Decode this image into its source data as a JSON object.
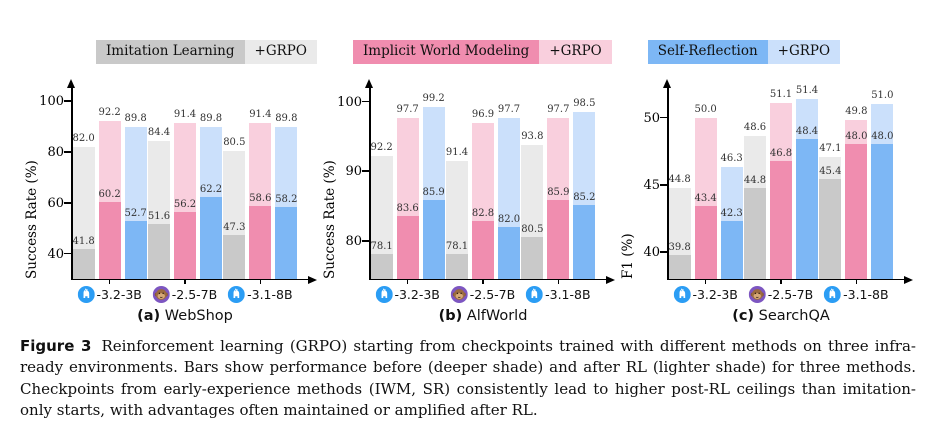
{
  "legend": {
    "items": [
      {
        "label": "Imitation Learning",
        "grpo": "+GRPO",
        "dark": "#c9c9c9",
        "light": "#eaeaea"
      },
      {
        "label": "Implicit World Modeling",
        "grpo": "+GRPO",
        "dark": "#f08daf",
        "light": "#f9cfdd"
      },
      {
        "label": "Self-Reflection",
        "grpo": "+GRPO",
        "dark": "#7db7f5",
        "light": "#cbe0fb"
      }
    ]
  },
  "chart_data": [
    {
      "type": "bar",
      "id": "webshop",
      "subplot_label": "(a)",
      "title": "WebShop",
      "ylabel": "Success Rate (%)",
      "yticks": [
        40,
        60,
        80,
        100
      ],
      "ylim": [
        30,
        102
      ],
      "legend_position": "top",
      "grid": false,
      "groups": [
        {
          "model": "-3.2-3B",
          "icon": "llama"
        },
        {
          "model": "-2.5-7B",
          "icon": "qwen"
        },
        {
          "model": "-3.1-8B",
          "icon": "llama"
        }
      ],
      "series": [
        {
          "name": "Imitation Learning",
          "dark": "#c9c9c9",
          "light": "#eaeaea",
          "before": [
            41.8,
            51.6,
            47.3
          ],
          "after": [
            82.0,
            84.4,
            80.5
          ]
        },
        {
          "name": "Implicit World Modeling",
          "dark": "#f08daf",
          "light": "#f9cfdd",
          "before": [
            60.2,
            56.2,
            58.6
          ],
          "after": [
            92.2,
            91.4,
            91.4
          ]
        },
        {
          "name": "Self-Reflection",
          "dark": "#7db7f5",
          "light": "#cbe0fb",
          "before": [
            52.7,
            62.2,
            58.2
          ],
          "after": [
            89.8,
            89.8,
            89.8
          ]
        }
      ]
    },
    {
      "type": "bar",
      "id": "alfworld",
      "subplot_label": "(b)",
      "title": "AlfWorld",
      "ylabel": "Success Rate (%)",
      "yticks": [
        80,
        90,
        100
      ],
      "ylim": [
        74.5,
        100.8
      ],
      "legend_position": "top",
      "grid": false,
      "groups": [
        {
          "model": "-3.2-3B",
          "icon": "llama"
        },
        {
          "model": "-2.5-7B",
          "icon": "qwen"
        },
        {
          "model": "-3.1-8B",
          "icon": "llama"
        }
      ],
      "series": [
        {
          "name": "Imitation Learning",
          "dark": "#c9c9c9",
          "light": "#eaeaea",
          "before": [
            78.1,
            78.1,
            80.5
          ],
          "after": [
            92.2,
            91.4,
            93.8
          ]
        },
        {
          "name": "Implicit World Modeling",
          "dark": "#f08daf",
          "light": "#f9cfdd",
          "before": [
            83.6,
            82.8,
            85.9
          ],
          "after": [
            97.7,
            96.9,
            97.7
          ]
        },
        {
          "name": "Self-Reflection",
          "dark": "#7db7f5",
          "light": "#cbe0fb",
          "before": [
            85.9,
            82.0,
            85.2
          ],
          "after": [
            99.2,
            97.7,
            98.5
          ]
        }
      ]
    },
    {
      "type": "bar",
      "id": "searchqa",
      "subplot_label": "(c)",
      "title": "SearchQA",
      "ylabel": "F1 (%)",
      "yticks": [
        40,
        45,
        50
      ],
      "ylim": [
        38,
        51.6
      ],
      "legend_position": "top",
      "grid": false,
      "groups": [
        {
          "model": "-3.2-3B",
          "icon": "llama"
        },
        {
          "model": "-2.5-7B",
          "icon": "qwen"
        },
        {
          "model": "-3.1-8B",
          "icon": "llama"
        }
      ],
      "series": [
        {
          "name": "Imitation Learning",
          "dark": "#c9c9c9",
          "light": "#eaeaea",
          "before": [
            39.8,
            44.8,
            45.4
          ],
          "after": [
            44.8,
            48.6,
            47.1
          ]
        },
        {
          "name": "Implicit World Modeling",
          "dark": "#f08daf",
          "light": "#f9cfdd",
          "before": [
            43.4,
            46.8,
            48.0
          ],
          "after": [
            50.0,
            51.1,
            49.8
          ]
        },
        {
          "name": "Self-Reflection",
          "dark": "#7db7f5",
          "light": "#cbe0fb",
          "before": [
            42.3,
            48.4,
            48.0
          ],
          "after": [
            46.3,
            51.4,
            51.0
          ]
        }
      ]
    }
  ],
  "caption": {
    "tag": "Figure 3",
    "text": "Reinforcement learning (GRPO) starting from checkpoints trained with different methods on three infra-ready environments. Bars show performance before (deeper shade) and after RL (lighter shade) for three methods. Checkpoints from early-experience methods (IWM, SR) consistently lead to higher post-RL ceilings than imitation-only starts, with advantages often maintained or amplified after RL."
  }
}
